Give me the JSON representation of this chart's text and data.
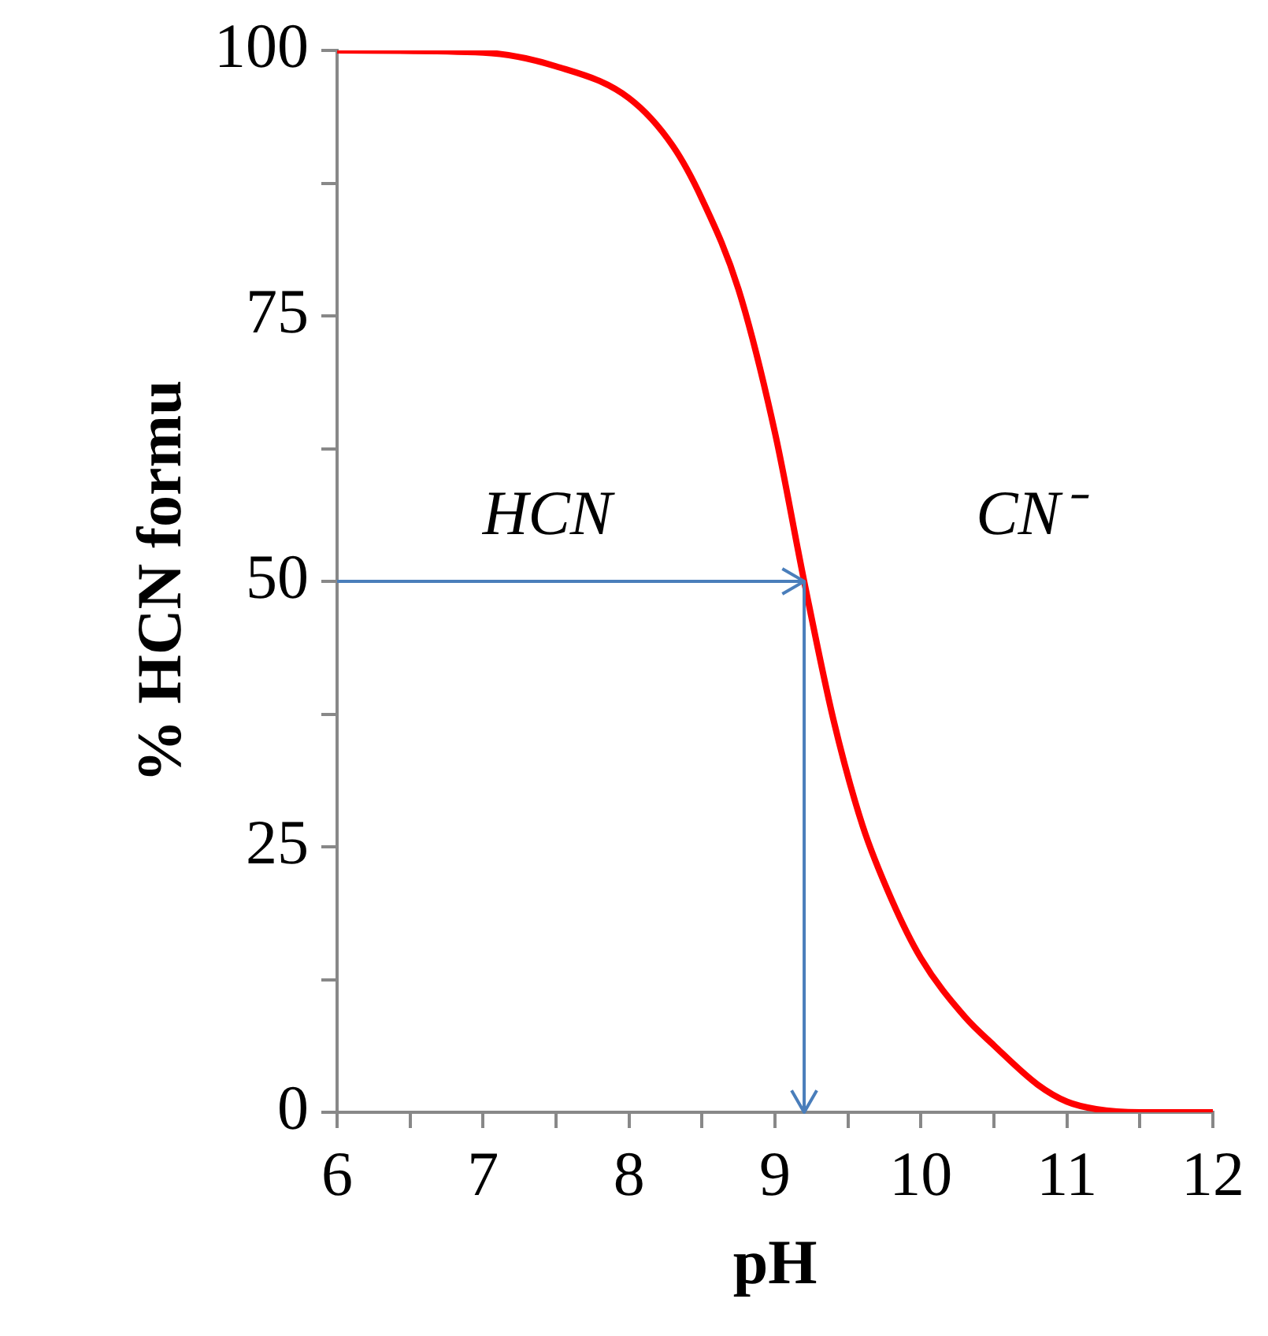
{
  "chart_data": {
    "type": "line",
    "xlabel": "pH",
    "ylabel": "% HCN formu",
    "x": [
      6,
      7,
      7.5,
      8,
      8.3,
      8.5,
      8.75,
      9,
      9.2,
      9.4,
      9.6,
      9.8,
      10,
      10.3,
      10.5,
      10.8,
      11,
      11.2,
      11.5,
      12
    ],
    "series": [
      {
        "color": "#ff0000",
        "values": [
          100,
          99.8,
          98.5,
          95.5,
          91,
          86,
          77.5,
          64,
          50,
          37,
          27,
          20,
          14.5,
          9,
          6.3,
          2.6,
          1,
          0.3,
          0,
          0
        ]
      }
    ],
    "xlim": [
      6,
      12
    ],
    "ylim": [
      0,
      100
    ],
    "xticks": [
      6,
      {
        "value": 6.5,
        "label": null
      },
      7,
      {
        "value": 7.5,
        "label": null
      },
      8,
      {
        "value": 8.5,
        "label": null
      },
      9,
      {
        "value": 9.5,
        "label": null
      },
      10,
      {
        "value": 10.5,
        "label": null
      },
      11,
      {
        "value": 11.5,
        "label": null
      },
      12
    ],
    "yticks": [
      0,
      {
        "value": 12.5,
        "label": null
      },
      25,
      {
        "value": 37.5,
        "label": null
      },
      50,
      {
        "value": 62.5,
        "label": null
      },
      75,
      {
        "value": 87.5,
        "label": null
      },
      100
    ],
    "ref_lines": [
      {
        "axis": "y",
        "value": 50,
        "color": "#4a7ebb"
      },
      {
        "axis": "x",
        "value": 9.2,
        "color": "#4a7ebb"
      }
    ],
    "annotations": [
      "HCN",
      "CN⁻"
    ],
    "grid": false,
    "legend": false,
    "marker": "none",
    "line_style": "solid"
  }
}
